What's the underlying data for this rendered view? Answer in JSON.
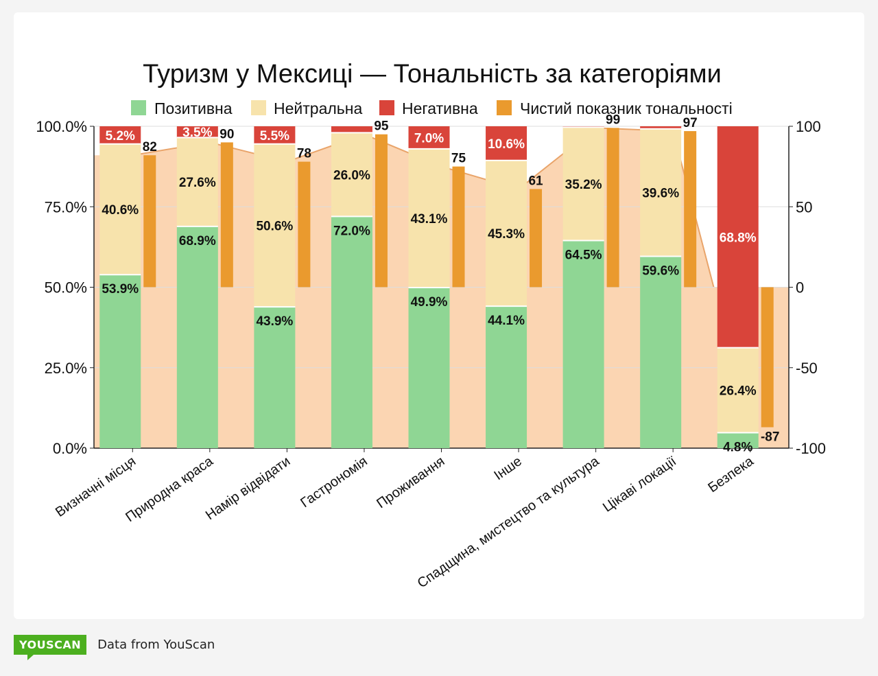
{
  "colors": {
    "positive": "#8fd694",
    "neutral": "#f7e3ac",
    "negative": "#d9443a",
    "net": "#ea9a2e",
    "net_area": "#fbd5b2",
    "net_line": "#e9a46a"
  },
  "legend": {
    "positive": "Позитивна",
    "neutral": "Нейтральна",
    "negative": "Негативна",
    "net": "Чистий показник тональності"
  },
  "footer": {
    "logo": "YOUSCAN",
    "text": "Data from YouScan"
  },
  "chart_data": {
    "type": "bar",
    "subtype": "stacked-100-with-secondary-bar",
    "title": "Туризм у Мексиці — Тональність за категоріями",
    "categories": [
      "Визначні місця",
      "Природна краса",
      "Намір відвідати",
      "Гастрономія",
      "Проживання",
      "Інше",
      "Спадщина, мистецтво та культура",
      "Цікаві локації",
      "Безпека"
    ],
    "series": [
      {
        "name": "Позитивна",
        "key": "positive",
        "values": [
          53.9,
          68.9,
          43.9,
          72.0,
          49.9,
          44.1,
          64.5,
          59.6,
          4.8
        ]
      },
      {
        "name": "Нейтральна",
        "key": "neutral",
        "values": [
          40.6,
          27.6,
          50.6,
          26.0,
          43.1,
          45.3,
          35.2,
          39.6,
          26.4
        ]
      },
      {
        "name": "Негативна",
        "key": "negative",
        "values": [
          5.2,
          3.5,
          5.5,
          2.0,
          7.0,
          10.6,
          0.3,
          0.8,
          68.8
        ]
      },
      {
        "name": "Чистий показник тональності",
        "key": "net",
        "axis": "right",
        "values": [
          82,
          90,
          78,
          95,
          75,
          61,
          99,
          97,
          -87
        ]
      }
    ],
    "neg_labels_shown": [
      true,
      true,
      true,
      false,
      true,
      true,
      false,
      false,
      true
    ],
    "left_axis": {
      "ylim": [
        0,
        100
      ],
      "ticks": [
        "0.0%",
        "25.0%",
        "50.0%",
        "75.0%",
        "100.0%"
      ]
    },
    "right_axis": {
      "ylim": [
        -100,
        100
      ],
      "ticks": [
        "-100",
        "-50",
        "0",
        "50",
        "100"
      ]
    }
  }
}
